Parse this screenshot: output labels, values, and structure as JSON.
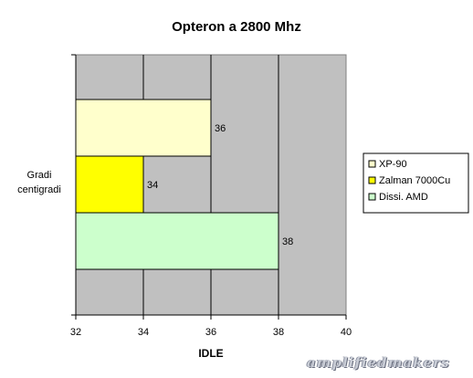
{
  "chart_data": {
    "type": "bar",
    "orientation": "horizontal",
    "title": "Opteron a 2800 Mhz",
    "xlabel": "IDLE",
    "ylabel": "Gradi centigradi",
    "category": "Gradi centigradi",
    "xlim": [
      32,
      40
    ],
    "xticks": [
      "32",
      "34",
      "36",
      "38",
      "40"
    ],
    "grid": true,
    "legend_position": "right",
    "plot_background": "#c0c0c0",
    "series": [
      {
        "name": "XP-90",
        "value": 36,
        "color": "#ffffcc"
      },
      {
        "name": "Zalman 7000Cu",
        "value": 34,
        "color": "#ffff00"
      },
      {
        "name": "Dissi. AMD",
        "value": 38,
        "color": "#ccffcc"
      }
    ]
  },
  "watermark": "amplifiedmakers"
}
